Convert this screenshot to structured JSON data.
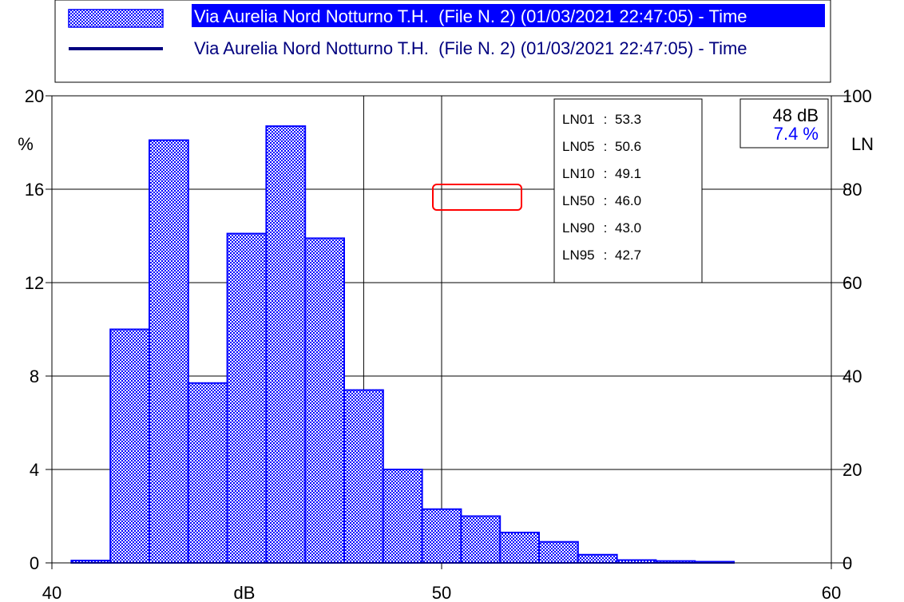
{
  "chart_data": {
    "type": "bar",
    "legend": [
      {
        "label": "Via Aurelia Nord Notturno T.H.  (File N. 2) (01/03/2021 22:47:05) - Time",
        "style": "hatched-bar",
        "highlighted": true
      },
      {
        "label": "Via Aurelia Nord Notturno T.H.  (File N. 2) (01/03/2021 22:47:05) - Time",
        "style": "line",
        "highlighted": false
      }
    ],
    "x_unit": "dB",
    "left_axis_unit": "%",
    "right_axis_unit": "LN",
    "xlim": [
      40,
      60
    ],
    "ylim": [
      0,
      20
    ],
    "ylim_right": [
      0,
      100
    ],
    "x_ticks": [
      "40",
      "50",
      "60"
    ],
    "y_ticks": [
      "0",
      "4",
      "8",
      "12",
      "16",
      "20"
    ],
    "y_ticks_right": [
      "0",
      "20",
      "40",
      "60",
      "80",
      "100"
    ],
    "grid": true,
    "bin_width": 1,
    "bins": [
      {
        "x": 41,
        "value": 0.1
      },
      {
        "x": 42,
        "value": 10.0
      },
      {
        "x": 43,
        "value": 18.1
      },
      {
        "x": 44,
        "value": 7.7
      },
      {
        "x": 45,
        "value": 14.1
      },
      {
        "x": 46,
        "value": 18.7
      },
      {
        "x": 47,
        "value": 13.9
      },
      {
        "x": 48,
        "value": 7.4
      },
      {
        "x": 49,
        "value": 4.0
      },
      {
        "x": 50,
        "value": 2.3
      },
      {
        "x": 51,
        "value": 2.0
      },
      {
        "x": 52,
        "value": 1.3
      },
      {
        "x": 53,
        "value": 0.9
      },
      {
        "x": 54,
        "value": 0.35
      },
      {
        "x": 55,
        "value": 0.12
      },
      {
        "x": 56,
        "value": 0.08
      },
      {
        "x": 57,
        "value": 0.05
      }
    ],
    "cursor": {
      "level": "48 dB",
      "percent": "7.4 %"
    },
    "percentiles": [
      {
        "name": "LN01",
        "value": "53.3"
      },
      {
        "name": "LN05",
        "value": "50.6"
      },
      {
        "name": "LN10",
        "value": "49.1"
      },
      {
        "name": "LN50",
        "value": "46.0"
      },
      {
        "name": "LN90",
        "value": "43.0"
      },
      {
        "name": "LN95",
        "value": "42.7"
      }
    ]
  },
  "colors": {
    "bar_stroke": "#0000ff",
    "bar_fill_a": "#0000ff",
    "bar_fill_b": "#ffffff",
    "legend_highlight_bg": "#0000ff",
    "legend_highlight_text": "#ffffff",
    "legend_text": "#00007f",
    "cursor_percent": "#0000ff",
    "marker": "#ff0000",
    "grid": "#000000"
  }
}
